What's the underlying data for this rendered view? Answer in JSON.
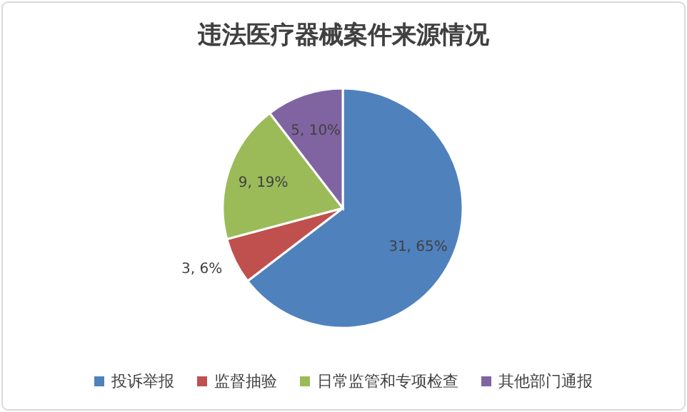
{
  "chart_data": {
    "type": "pie",
    "title": "违法医疗器械案件来源情况",
    "categories": [
      "投诉举报",
      "监督抽验",
      "日常监管和专项检查",
      "其他部门通报"
    ],
    "values": [
      31,
      3,
      9,
      5
    ],
    "value_labels": [
      "31, 65%",
      "3, 6%",
      "9, 19%",
      "5, 10%"
    ],
    "colors": [
      "#4f81bd",
      "#c0504d",
      "#9bbb59",
      "#8064a2"
    ],
    "legend": "bottom"
  }
}
